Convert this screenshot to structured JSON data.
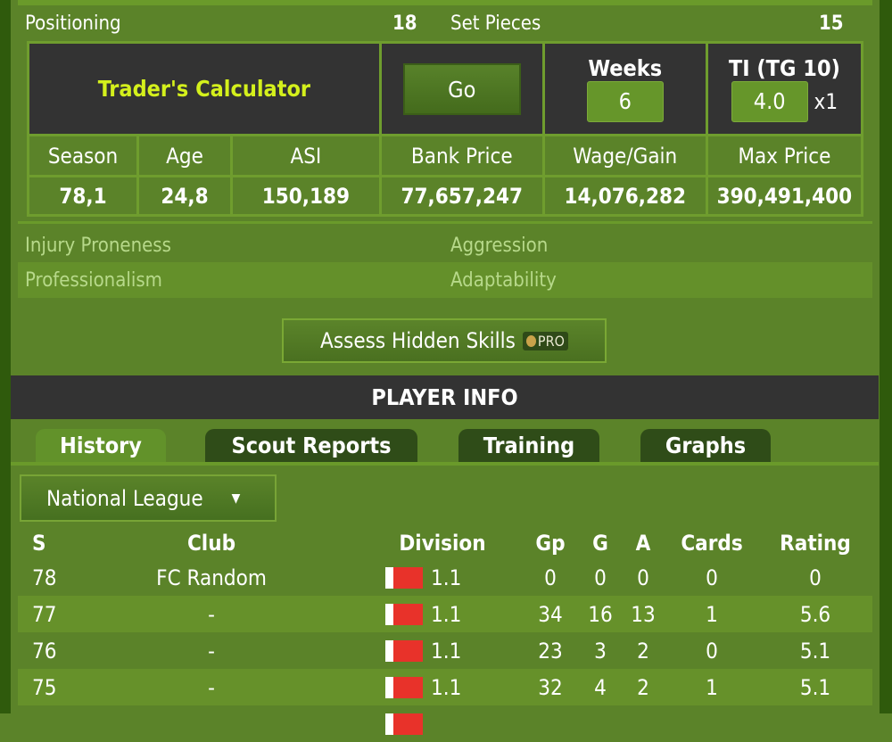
{
  "skills": {
    "left": {
      "label": "Positioning",
      "value": "18"
    },
    "right": {
      "label": "Set Pieces",
      "value": "15"
    }
  },
  "calculator": {
    "title": "Trader's Calculator",
    "go_label": "Go",
    "weeks_label": "Weeks",
    "weeks_value": "6",
    "ti_label": "TI (TG 10)",
    "ti_value": "4.0",
    "multiplier": "x1",
    "headers": [
      "Season",
      "Age",
      "ASI",
      "Bank Price",
      "Wage/Gain",
      "Max Price"
    ],
    "values": [
      "78,1",
      "24,8",
      "150,189",
      "77,657,247",
      "14,076,282",
      "390,491,400"
    ]
  },
  "hidden_skills": [
    "Injury Proneness",
    "Aggression",
    "Professionalism",
    "Adaptability"
  ],
  "assess_label": "Assess Hidden Skills",
  "pro_badge": "PRO",
  "player_info_title": "PLAYER INFO",
  "tabs": [
    {
      "label": "History",
      "active": true
    },
    {
      "label": "Scout Reports"
    },
    {
      "label": "Training"
    },
    {
      "label": "Graphs"
    }
  ],
  "league_select": "National League",
  "history": {
    "columns": [
      "S",
      "Club",
      "Division",
      "Gp",
      "G",
      "A",
      "Cards",
      "Rating"
    ],
    "rows": [
      {
        "s": "78",
        "club": "FC Random",
        "division": "1.1",
        "gp": "0",
        "g": "0",
        "a": "0",
        "cards": "0",
        "rating": "0"
      },
      {
        "s": "77",
        "club": "-",
        "division": "1.1",
        "gp": "34",
        "g": "16",
        "a": "13",
        "cards": "1",
        "rating": "5.6"
      },
      {
        "s": "76",
        "club": "-",
        "division": "1.1",
        "gp": "23",
        "g": "3",
        "a": "2",
        "cards": "0",
        "rating": "5.1"
      },
      {
        "s": "75",
        "club": "-",
        "division": "1.1",
        "gp": "32",
        "g": "4",
        "a": "2",
        "cards": "1",
        "rating": "5.1"
      }
    ]
  },
  "colors": {
    "background": "#5b8329",
    "panel": "#333333",
    "highlight": "#d4f01c",
    "flag": "#e8322a"
  }
}
